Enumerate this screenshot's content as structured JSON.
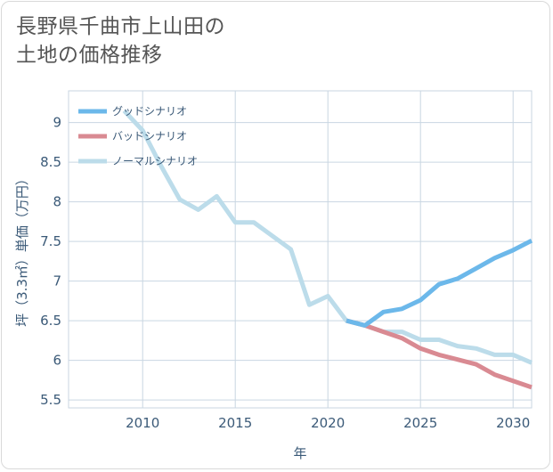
{
  "title": {
    "line1": "長野県千曲市上山田の",
    "line2": "土地の価格推移"
  },
  "chart_data": {
    "type": "line",
    "xlabel": "年",
    "ylabel": "坪（3.3㎡）単価（万円）",
    "xlim": [
      2006,
      2031
    ],
    "ylim": [
      5.4,
      9.4
    ],
    "x_ticks": [
      2010,
      2015,
      2020,
      2025,
      2030
    ],
    "y_ticks": [
      5.5,
      6,
      6.5,
      7,
      7.5,
      8,
      8.5,
      9
    ],
    "grid": true,
    "legend_position": "top-left",
    "series": [
      {
        "name": "グッドシナリオ",
        "color": "#6cb8ea",
        "x": [
          2021,
          2022,
          2023,
          2024,
          2025,
          2026,
          2027,
          2028,
          2029,
          2030,
          2031
        ],
        "y": [
          6.5,
          6.44,
          6.61,
          6.65,
          6.76,
          6.96,
          7.03,
          7.16,
          7.29,
          7.39,
          7.51
        ]
      },
      {
        "name": "バッドシナリオ",
        "color": "#d98a92",
        "x": [
          2021,
          2022,
          2023,
          2024,
          2025,
          2026,
          2027,
          2028,
          2029,
          2030,
          2031
        ],
        "y": [
          6.5,
          6.44,
          6.36,
          6.28,
          6.15,
          6.07,
          6.01,
          5.95,
          5.82,
          5.74,
          5.66
        ]
      },
      {
        "name": "ノーマルシナリオ",
        "color": "#bcdcea",
        "x": [
          2009,
          2010,
          2011,
          2012,
          2013,
          2014,
          2015,
          2016,
          2017,
          2018,
          2019,
          2020,
          2021,
          2022,
          2023,
          2024,
          2025,
          2026,
          2027,
          2028,
          2029,
          2030,
          2031
        ],
        "y": [
          9.15,
          8.9,
          8.45,
          8.03,
          7.9,
          8.07,
          7.74,
          7.74,
          7.57,
          7.4,
          6.7,
          6.81,
          6.5,
          6.44,
          6.36,
          6.36,
          6.26,
          6.26,
          6.18,
          6.15,
          6.07,
          6.07,
          5.97
        ]
      }
    ]
  }
}
